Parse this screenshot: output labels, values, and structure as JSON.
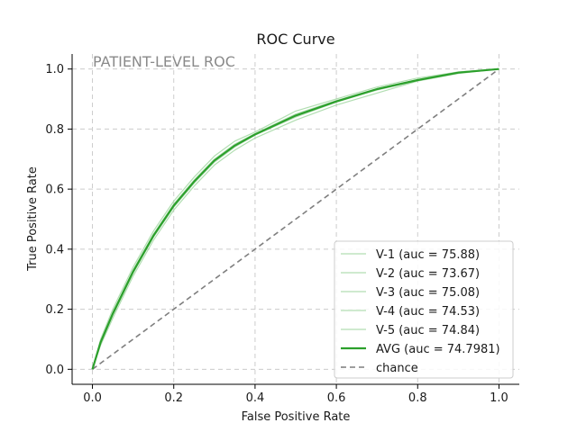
{
  "chart_data": {
    "type": "line",
    "title": "ROC Curve",
    "xlabel": "False Positive Rate",
    "ylabel": "True Positive Rate",
    "xlim": [
      -0.05,
      1.05
    ],
    "ylim": [
      -0.05,
      1.05
    ],
    "xticks": [
      "0.0",
      "0.2",
      "0.4",
      "0.6",
      "0.8",
      "1.0"
    ],
    "yticks": [
      "0.0",
      "0.2",
      "0.4",
      "0.6",
      "0.8",
      "1.0"
    ],
    "grid": true,
    "legend_position": "lower-right",
    "annotation": "PATIENT-LEVEL ROC",
    "colors": {
      "fold": "#9fd69f",
      "avg": "#2ca02c",
      "chance": "#7f7f7f",
      "grid": "#cccccc",
      "annotation": "#8a8a8a"
    },
    "series": [
      {
        "name": "V-1 (auc = 75.88)",
        "style": "fold",
        "x": [
          0,
          0.02,
          0.05,
          0.1,
          0.15,
          0.2,
          0.25,
          0.3,
          0.35,
          0.4,
          0.5,
          0.6,
          0.7,
          0.8,
          0.9,
          1.0
        ],
        "y": [
          0,
          0.1,
          0.2,
          0.34,
          0.46,
          0.56,
          0.64,
          0.71,
          0.76,
          0.79,
          0.86,
          0.9,
          0.94,
          0.97,
          0.99,
          1.0
        ]
      },
      {
        "name": "V-2 (auc = 73.67)",
        "style": "fold",
        "x": [
          0,
          0.02,
          0.05,
          0.1,
          0.15,
          0.2,
          0.25,
          0.3,
          0.35,
          0.4,
          0.5,
          0.6,
          0.7,
          0.8,
          0.9,
          1.0
        ],
        "y": [
          0,
          0.08,
          0.17,
          0.31,
          0.43,
          0.53,
          0.61,
          0.68,
          0.73,
          0.77,
          0.83,
          0.88,
          0.92,
          0.96,
          0.985,
          1.0
        ]
      },
      {
        "name": "V-3 (auc = 75.08)",
        "style": "fold",
        "x": [
          0,
          0.02,
          0.05,
          0.1,
          0.15,
          0.2,
          0.25,
          0.3,
          0.35,
          0.4,
          0.5,
          0.6,
          0.7,
          0.8,
          0.9,
          1.0
        ],
        "y": [
          0,
          0.09,
          0.19,
          0.33,
          0.45,
          0.55,
          0.63,
          0.7,
          0.75,
          0.785,
          0.85,
          0.895,
          0.935,
          0.965,
          0.99,
          1.0
        ]
      },
      {
        "name": "V-4 (auc = 74.53)",
        "style": "fold",
        "x": [
          0,
          0.02,
          0.05,
          0.1,
          0.15,
          0.2,
          0.25,
          0.3,
          0.35,
          0.4,
          0.5,
          0.6,
          0.7,
          0.8,
          0.9,
          1.0
        ],
        "y": [
          0,
          0.085,
          0.18,
          0.32,
          0.44,
          0.54,
          0.62,
          0.69,
          0.74,
          0.78,
          0.84,
          0.89,
          0.93,
          0.962,
          0.988,
          1.0
        ]
      },
      {
        "name": "V-5 (auc = 74.84)",
        "style": "fold",
        "x": [
          0,
          0.02,
          0.05,
          0.1,
          0.15,
          0.2,
          0.25,
          0.3,
          0.35,
          0.4,
          0.5,
          0.6,
          0.7,
          0.8,
          0.9,
          1.0
        ],
        "y": [
          0,
          0.09,
          0.185,
          0.325,
          0.445,
          0.545,
          0.625,
          0.695,
          0.745,
          0.782,
          0.845,
          0.892,
          0.932,
          0.963,
          0.989,
          1.0
        ]
      },
      {
        "name": "AVG (auc = 74.7981)",
        "style": "avg",
        "x": [
          0,
          0.02,
          0.05,
          0.1,
          0.15,
          0.2,
          0.25,
          0.3,
          0.35,
          0.4,
          0.5,
          0.6,
          0.7,
          0.8,
          0.9,
          1.0
        ],
        "y": [
          0,
          0.09,
          0.185,
          0.325,
          0.445,
          0.545,
          0.625,
          0.695,
          0.745,
          0.782,
          0.845,
          0.892,
          0.933,
          0.963,
          0.988,
          1.0
        ]
      },
      {
        "name": "chance",
        "style": "chance",
        "x": [
          0,
          1
        ],
        "y": [
          0,
          1
        ]
      }
    ]
  }
}
